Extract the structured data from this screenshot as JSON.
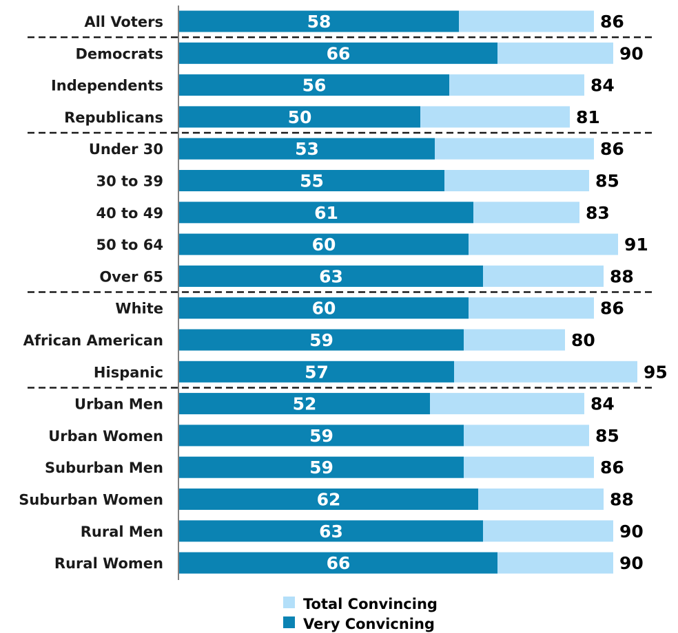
{
  "chart_data": {
    "type": "bar",
    "orientation": "horizontal",
    "categories": [
      "All Voters",
      "Democrats",
      "Independents",
      "Republicans",
      "Under 30",
      "30 to 39",
      "40 to 49",
      "50 to 64",
      "Over 65",
      "White",
      "African American",
      "Hispanic",
      "Urban Men",
      "Urban Women",
      "Suburban Men",
      "Suburban Women",
      "Rural Men",
      "Rural Women"
    ],
    "series": [
      {
        "name": "Total Convincing",
        "color": "#b3dff9",
        "values": [
          86,
          90,
          84,
          81,
          86,
          85,
          83,
          91,
          88,
          86,
          80,
          95,
          84,
          85,
          86,
          88,
          90,
          90
        ]
      },
      {
        "name": "Very Convicning",
        "color": "#0b83b3",
        "values": [
          58,
          66,
          56,
          50,
          53,
          55,
          61,
          60,
          63,
          60,
          59,
          57,
          52,
          59,
          59,
          62,
          63,
          66
        ]
      }
    ],
    "group_separators_after_index": [
      0,
      3,
      8,
      11
    ],
    "xlim": [
      0,
      100
    ],
    "grid": false,
    "legend_position": "bottom-center"
  }
}
